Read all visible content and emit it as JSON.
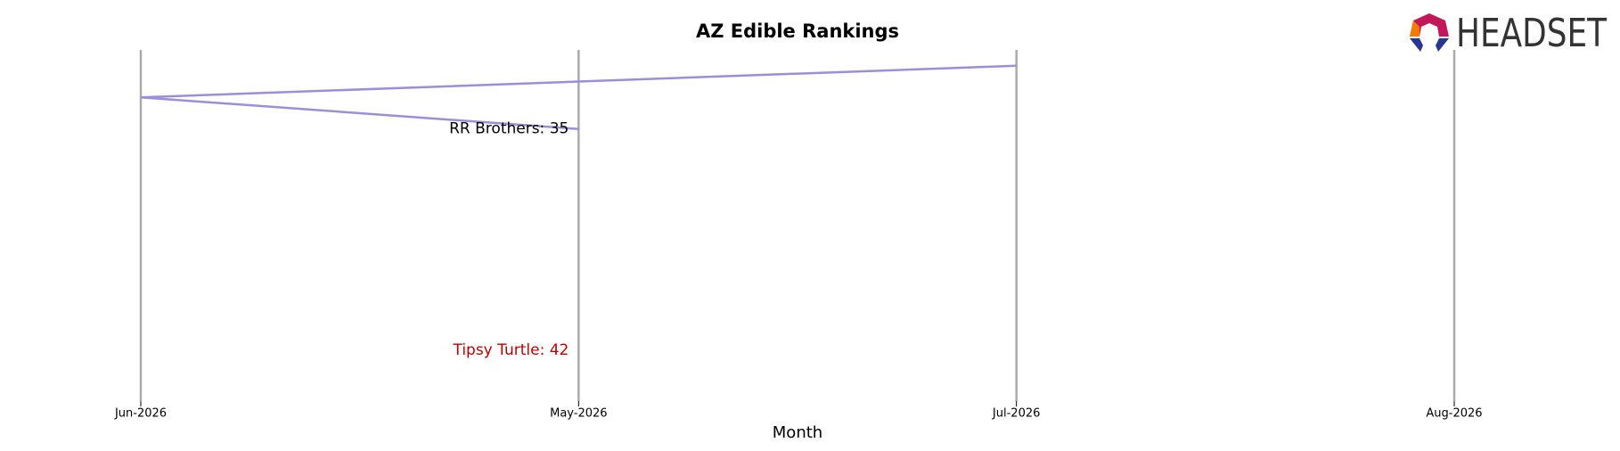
{
  "chart_data": {
    "type": "line",
    "title": "AZ Edible Rankings",
    "x_label": "Month",
    "categories": [
      "Jun-2026",
      "May-2026",
      "Jul-2026",
      "Aug-2026"
    ],
    "ylim": [
      43.6,
      32.5
    ],
    "grid": true,
    "series": [
      {
        "name": "RR Brothers",
        "color": "#9b8fd8",
        "label_color": "#000000",
        "label": "RR Brothers: 35",
        "x": [
          "May-2026",
          "Jun-2026",
          "Jul-2026"
        ],
        "values": [
          35,
          34,
          33
        ]
      },
      {
        "name": "Tipsy Turtle",
        "color": "#c00000",
        "label_color": "#c00000",
        "label": "Tipsy Turtle: 42",
        "x": [
          "May-2026"
        ],
        "values": [
          42
        ]
      }
    ]
  },
  "logo": {
    "text": "HEADSET"
  }
}
